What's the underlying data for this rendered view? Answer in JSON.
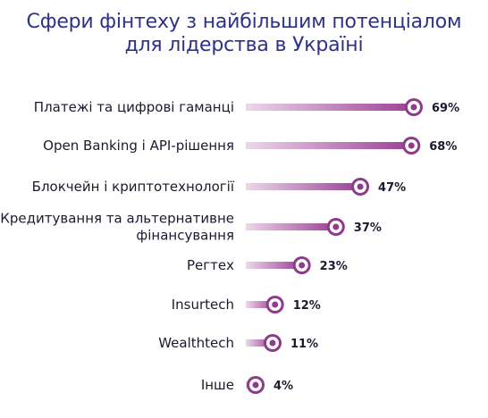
{
  "chart_data": {
    "type": "bar",
    "title_lines": [
      "Сфери фінтеху з найбільшим потенціалом",
      "для лідерства в Україні"
    ],
    "categories": [
      [
        "Платежі та цифрові гаманці"
      ],
      [
        "Open Banking і API-рішення"
      ],
      [
        "Блокчейн і криптотехнології"
      ],
      [
        "Кредитування та альтернативне",
        "фінансування"
      ],
      [
        "Регтех"
      ],
      [
        "Insurtech"
      ],
      [
        "Wealthtech"
      ],
      [
        "Інше"
      ]
    ],
    "values": [
      69,
      68,
      47,
      37,
      23,
      12,
      11,
      4
    ],
    "value_labels": [
      "69%",
      "68%",
      "47%",
      "37%",
      "23%",
      "12%",
      "11%",
      "4%"
    ],
    "unit": "%",
    "xlim": [
      0,
      69
    ],
    "grid": false,
    "legend": "none",
    "colors": {
      "bar_end": "#9b3f95",
      "bar_start": "#ecd8ea",
      "marker_outer": "#8e3b8c",
      "marker_inner": "#ffffff",
      "title": "#2e3287",
      "text": "#1b1b2f"
    }
  }
}
